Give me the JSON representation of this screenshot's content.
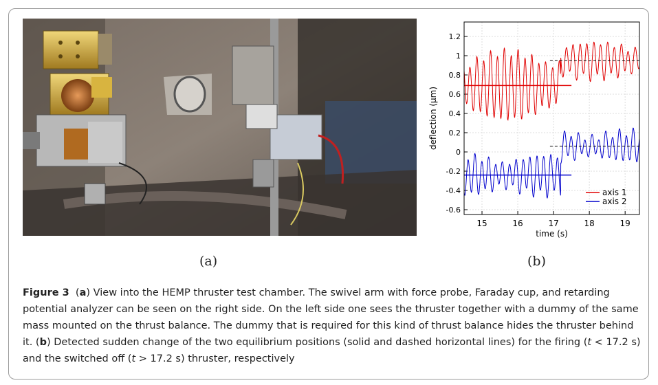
{
  "subfigure_a_label": "(a)",
  "subfigure_b_label": "(b)",
  "caption": {
    "figure_label": "Figure 3",
    "part_a_open": "(",
    "part_a_letter": "a",
    "part_a_text": ") View into the HEMP thruster test chamber. The swivel arm with force probe, Faraday cup, and retarding potential analyzer can be seen on the right side. On the left side one sees the thruster together with a dummy of the same mass mounted on the thrust balance. The dummy that is required for this kind of thrust balance hides the thruster behind it. (",
    "part_b_letter": "b",
    "part_b_text_1": ") Detected sudden change of the two equilibrium positions (solid and dashed horizontal lines) for the firing (",
    "t_var_1": "t",
    "cond_1": " < 17.2 s) and the switched off (",
    "t_var_2": "t",
    "cond_2": " > 17.2 s) thruster, respectively"
  },
  "photo": {
    "description_icon": "thruster-test-chamber-photo"
  },
  "chart_data": {
    "type": "line",
    "xlabel": "time  (s)",
    "ylabel": "deflection  (μm)",
    "xlim": [
      14.5,
      19.4
    ],
    "ylim": [
      -0.65,
      1.35
    ],
    "x_ticks": [
      "15",
      "16",
      "17",
      "18",
      "19"
    ],
    "y_ticks": [
      "-0.6",
      "-0.4",
      "-0.2",
      "0",
      "0.2",
      "0.4",
      "0.6",
      "0.8",
      "1",
      "1.2"
    ],
    "grid": true,
    "legend_position": "bottom-right",
    "series": [
      {
        "name": "axis 1",
        "color": "#e00000",
        "baseline_before": 0.69,
        "baseline_after": 0.95,
        "amplitude_before": 0.35,
        "amplitude_after": 0.18
      },
      {
        "name": "axis 2",
        "color": "#0000cc",
        "baseline_before": -0.24,
        "baseline_after": 0.06,
        "amplitude_before": 0.2,
        "amplitude_after": 0.15
      }
    ],
    "switch_time": 17.2
  }
}
